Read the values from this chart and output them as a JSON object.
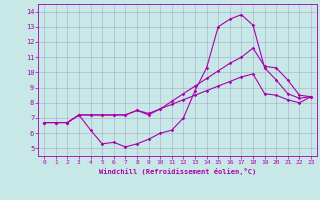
{
  "xlabel": "Windchill (Refroidissement éolien,°C)",
  "bg_color": "#c8e8e8",
  "line_color": "#aa00aa",
  "grid_color": "#aaaacc",
  "xlim": [
    -0.5,
    23.5
  ],
  "ylim": [
    4.5,
    14.5
  ],
  "xticks": [
    0,
    1,
    2,
    3,
    4,
    5,
    6,
    7,
    8,
    9,
    10,
    11,
    12,
    13,
    14,
    15,
    16,
    17,
    18,
    19,
    20,
    21,
    22,
    23
  ],
  "yticks": [
    5,
    6,
    7,
    8,
    9,
    10,
    11,
    12,
    13,
    14
  ],
  "line1_x": [
    0,
    1,
    2,
    3,
    4,
    5,
    6,
    7,
    8,
    9,
    10,
    11,
    12,
    13,
    14,
    15,
    16,
    17,
    18,
    19,
    20,
    21,
    22,
    23
  ],
  "line1_y": [
    6.7,
    6.7,
    6.7,
    7.2,
    6.2,
    5.3,
    5.4,
    5.1,
    5.3,
    5.6,
    6.0,
    6.2,
    7.0,
    8.8,
    10.3,
    13.0,
    13.5,
    13.8,
    13.1,
    10.3,
    9.5,
    8.6,
    8.3,
    8.4
  ],
  "line2_x": [
    0,
    1,
    2,
    3,
    4,
    5,
    6,
    7,
    8,
    9,
    10,
    11,
    12,
    13,
    14,
    15,
    16,
    17,
    18,
    19,
    20,
    21,
    22,
    23
  ],
  "line2_y": [
    6.7,
    6.7,
    6.7,
    7.2,
    7.2,
    7.2,
    7.2,
    7.2,
    7.5,
    7.2,
    7.6,
    8.1,
    8.6,
    9.1,
    9.6,
    10.1,
    10.6,
    11.0,
    11.6,
    10.4,
    10.3,
    9.5,
    8.5,
    8.4
  ],
  "line3_x": [
    0,
    1,
    2,
    3,
    4,
    5,
    6,
    7,
    8,
    9,
    10,
    11,
    12,
    13,
    14,
    15,
    16,
    17,
    18,
    19,
    20,
    21,
    22,
    23
  ],
  "line3_y": [
    6.7,
    6.7,
    6.7,
    7.2,
    7.2,
    7.2,
    7.2,
    7.2,
    7.5,
    7.3,
    7.6,
    7.9,
    8.2,
    8.5,
    8.8,
    9.1,
    9.4,
    9.7,
    9.9,
    8.6,
    8.5,
    8.2,
    8.0,
    8.4
  ]
}
